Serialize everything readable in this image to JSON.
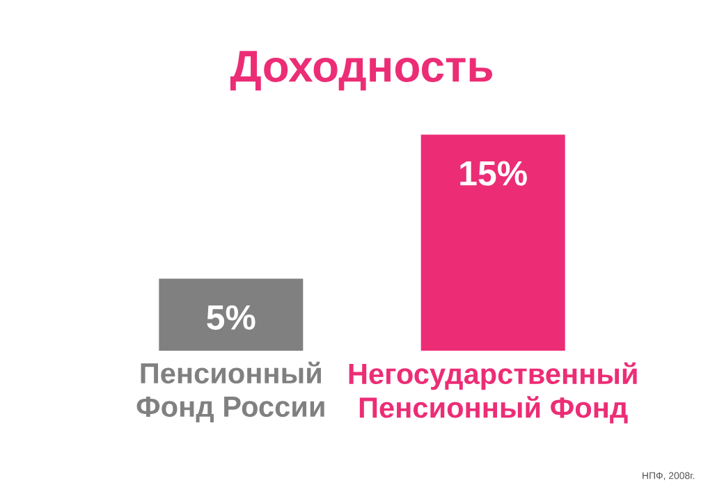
{
  "chart_data": {
    "type": "bar",
    "title": "Доходность",
    "categories": [
      "Пенсионный\nФонд России",
      "Негосударственный\nПенсионный Фонд"
    ],
    "values": [
      5,
      15
    ],
    "value_labels": [
      "5%",
      "15%"
    ],
    "colors": [
      "#808080",
      "#ec2d76"
    ],
    "annotations": [
      "НПФ, 2008г."
    ]
  }
}
